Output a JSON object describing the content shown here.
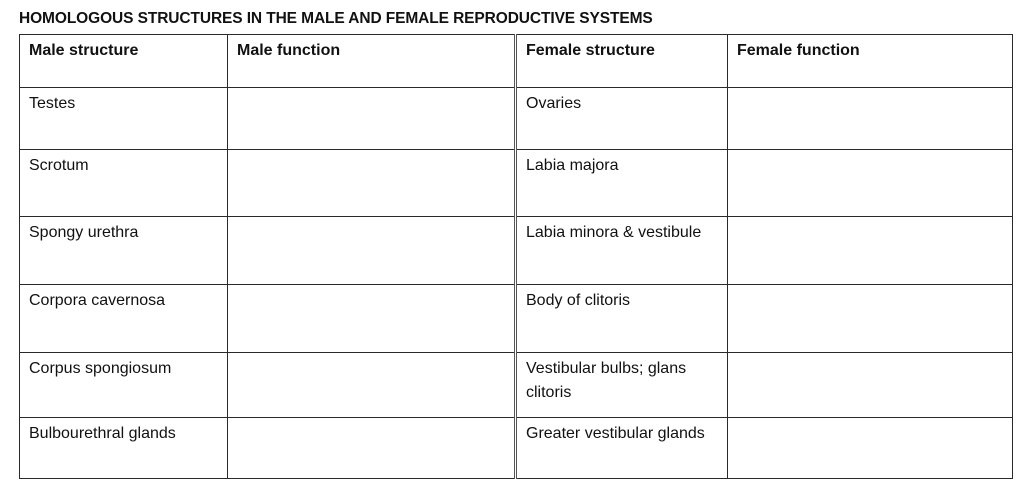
{
  "title": "HOMOLOGOUS STRUCTURES IN THE MALE AND FEMALE REPRODUCTIVE SYSTEMS",
  "table": {
    "headers": [
      "Male structure",
      "Male function",
      "Female structure",
      "Female function"
    ],
    "rows": [
      {
        "male_structure": "Testes",
        "male_function": "",
        "female_structure": "Ovaries",
        "female_function": ""
      },
      {
        "male_structure": "Scrotum",
        "male_function": "",
        "female_structure": "Labia majora",
        "female_function": ""
      },
      {
        "male_structure": "Spongy urethra",
        "male_function": "",
        "female_structure": "Labia minora & vestibule",
        "female_function": ""
      },
      {
        "male_structure": "Corpora cavernosa",
        "male_function": "",
        "female_structure": "Body of clitoris",
        "female_function": ""
      },
      {
        "male_structure": "Corpus spongiosum",
        "male_function": "",
        "female_structure": "Vestibular bulbs; glans clitoris",
        "female_function": ""
      },
      {
        "male_structure": "Bulbourethral glands",
        "male_function": "",
        "female_structure": "Greater vestibular glands",
        "female_function": ""
      }
    ]
  }
}
